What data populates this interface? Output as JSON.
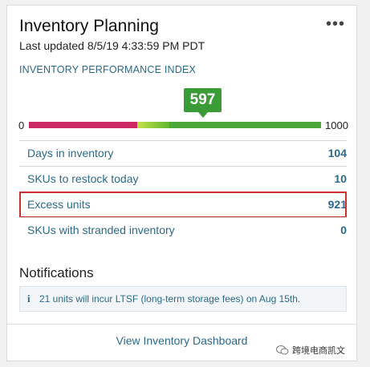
{
  "card": {
    "title": "Inventory Planning",
    "more_label": "•••",
    "last_updated": "Last updated 8/5/19 4:33:59 PM PDT"
  },
  "ipi": {
    "label": "INVENTORY PERFORMANCE INDEX",
    "score": "597",
    "min": "0",
    "max": "1000",
    "score_value": 597,
    "colors": {
      "red": "#cc2864",
      "yellow_green": "#c4e14a",
      "green": "#4aa83a",
      "badge": "#3a9c36"
    }
  },
  "metrics": [
    {
      "label": "Days in inventory",
      "value": "104"
    },
    {
      "label": "SKUs to restock today",
      "value": "10"
    },
    {
      "label": "Excess units",
      "value": "921"
    },
    {
      "label": "SKUs with stranded inventory",
      "value": "0"
    }
  ],
  "highlight_color": "#c9312f",
  "notifications": {
    "title": "Notifications",
    "icon_glyph": "i",
    "items": [
      {
        "text": "21 units will incur LTSF (long-term storage fees) on Aug 15th."
      }
    ]
  },
  "footer": {
    "link": "View Inventory Dashboard"
  },
  "watermark": {
    "text": "跨境电商凯文"
  }
}
